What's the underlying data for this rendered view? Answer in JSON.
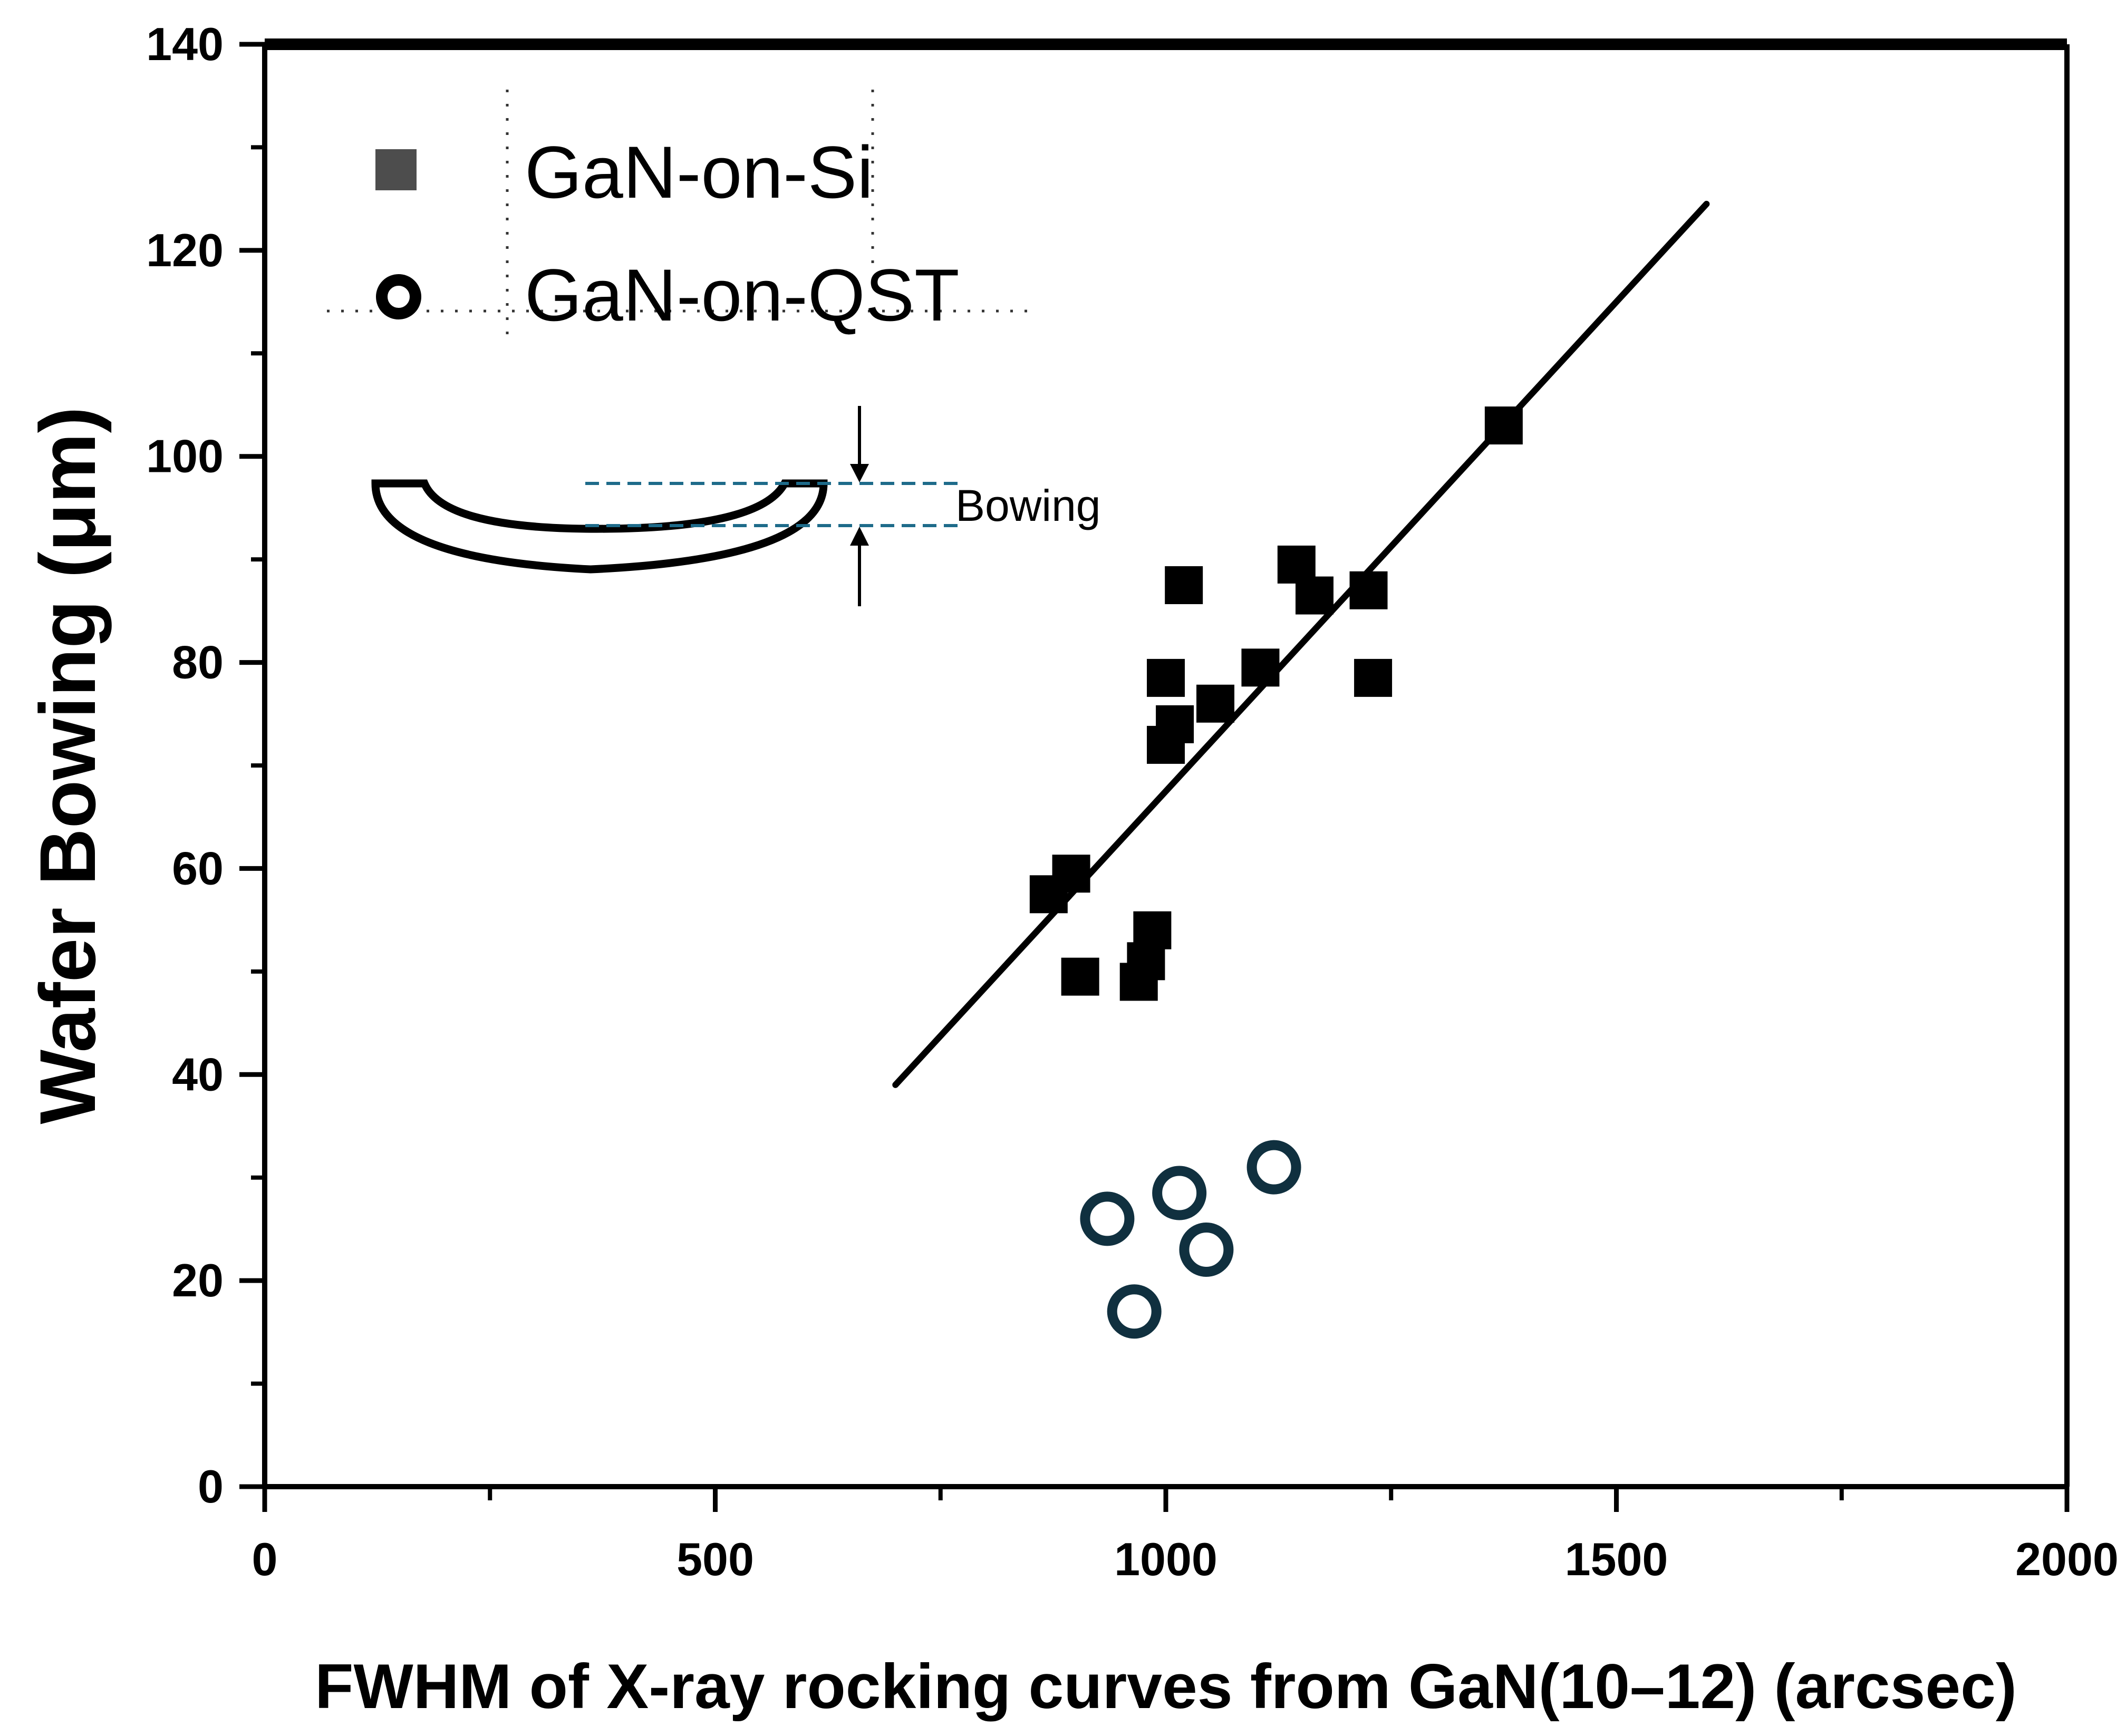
{
  "chart_data": {
    "type": "scatter",
    "title": "",
    "xlabel": "FWHM of X-ray rocking curves from GaN(10–12) (arcsec)",
    "ylabel": "Wafer Bowing (μm)",
    "xlim": [
      0,
      2000
    ],
    "ylim": [
      0,
      140
    ],
    "x_ticks": [
      0,
      500,
      1000,
      1500,
      2000
    ],
    "y_ticks": [
      0,
      20,
      40,
      60,
      80,
      100,
      120,
      140
    ],
    "legend_position": "top-left",
    "grid": false,
    "series": [
      {
        "name": "GaN-on-Si",
        "marker": "filled-square",
        "color": "#000000",
        "legend_color": "#4d4d4d",
        "points": [
          {
            "x": 870,
            "y": 57.5
          },
          {
            "x": 895,
            "y": 59.5
          },
          {
            "x": 905,
            "y": 49.5
          },
          {
            "x": 970,
            "y": 49
          },
          {
            "x": 978,
            "y": 51
          },
          {
            "x": 985,
            "y": 54
          },
          {
            "x": 1000,
            "y": 78.5
          },
          {
            "x": 1000,
            "y": 72
          },
          {
            "x": 1010,
            "y": 74
          },
          {
            "x": 1020,
            "y": 87.5
          },
          {
            "x": 1055,
            "y": 76
          },
          {
            "x": 1105,
            "y": 79.5
          },
          {
            "x": 1145,
            "y": 89.5
          },
          {
            "x": 1165,
            "y": 86.5
          },
          {
            "x": 1225,
            "y": 87
          },
          {
            "x": 1230,
            "y": 78.5
          },
          {
            "x": 1375,
            "y": 103
          }
        ]
      },
      {
        "name": "GaN-on-QST",
        "marker": "open-circle",
        "color": "#10303f",
        "points": [
          {
            "x": 935,
            "y": 26
          },
          {
            "x": 965,
            "y": 17
          },
          {
            "x": 1015,
            "y": 28.5
          },
          {
            "x": 1045,
            "y": 23
          },
          {
            "x": 1120,
            "y": 31
          }
        ]
      }
    ],
    "fit_line": {
      "x": [
        700,
        1600
      ],
      "y": [
        39,
        124.5
      ],
      "color": "#000000"
    },
    "inset": {
      "label": "Bowing",
      "dash_color": "#1e6b8a"
    }
  }
}
